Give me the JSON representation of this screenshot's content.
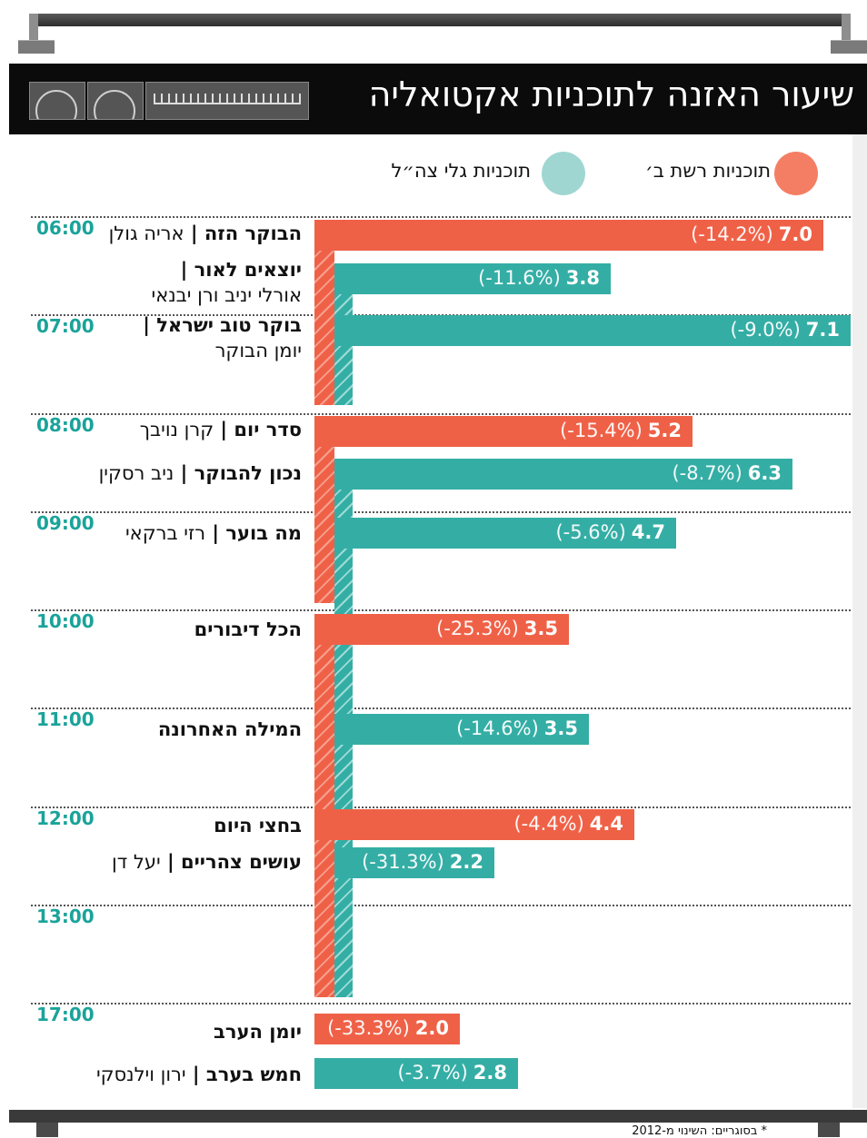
{
  "title": "שיעור האזנה לתוכניות אקטואליה",
  "legend": {
    "reshet_bet": {
      "label": "תוכניות רשת ב׳",
      "color": "#f47e64"
    },
    "galei_tzahal": {
      "label": "תוכניות גלי צה״ל",
      "color": "#9fd6d2"
    }
  },
  "colors": {
    "red": "#ef6147",
    "teal": "#34aea5",
    "hour": "#1aa39a"
  },
  "hours": [
    "06:00",
    "07:00",
    "08:00",
    "09:00",
    "10:00",
    "11:00",
    "12:00",
    "13:00",
    "17:00"
  ],
  "programs": [
    {
      "title": "הבוקר הזה",
      "host": "אריה גולן",
      "host_line2": ""
    },
    {
      "title": "יוצאים לאור",
      "host": "",
      "host_line2": "אורלי יניב ורן יבנאי"
    },
    {
      "title": "בוקר טוב ישראל",
      "host": "",
      "host_line2": "יומן הבוקר"
    },
    {
      "title": "סדר יום",
      "host": "קרן נויבך",
      "host_line2": ""
    },
    {
      "title": "נכון להבוקר",
      "host": "ניב רסקין",
      "host_line2": ""
    },
    {
      "title": "מה בוער",
      "host": "רזי ברקאי",
      "host_line2": ""
    },
    {
      "title": "הכל דיבורים",
      "host": "",
      "host_line2": ""
    },
    {
      "title": "המילה האחרונה",
      "host": "",
      "host_line2": ""
    },
    {
      "title": "בחצי היום",
      "host": "",
      "host_line2": ""
    },
    {
      "title": "עושים צהריים",
      "host": "יעל דן",
      "host_line2": ""
    },
    {
      "title": "יומן הערב",
      "host": "",
      "host_line2": ""
    },
    {
      "title": "חמש בערב",
      "host": "ירון וילנסקי",
      "host_line2": ""
    }
  ],
  "chart_data": {
    "type": "bar",
    "title": "שיעור האזנה לתוכניות אקטואליה",
    "orientation": "horizontal",
    "categories": [
      "הבוקר הזה",
      "יוצאים לאור",
      "בוקר טוב ישראל",
      "סדר יום",
      "נכון להבוקר",
      "מה בוער",
      "הכל דיבורים",
      "המילה האחרונה",
      "בחצי היום",
      "עושים צהריים",
      "יומן הערב",
      "חמש בערב"
    ],
    "station": [
      "reshet_bet",
      "galei_tzahal",
      "galei_tzahal",
      "reshet_bet",
      "galei_tzahal",
      "galei_tzahal",
      "reshet_bet",
      "galei_tzahal",
      "reshet_bet",
      "galei_tzahal",
      "reshet_bet",
      "galei_tzahal"
    ],
    "values": [
      7.0,
      3.8,
      7.1,
      5.2,
      6.3,
      4.7,
      3.5,
      3.5,
      4.4,
      2.2,
      2.0,
      2.8
    ],
    "value_labels": [
      "7.0",
      "3.8",
      "7.1",
      "5.2",
      "6.3",
      "4.7",
      "3.5",
      "3.5",
      "4.4",
      "2.2",
      "2.0",
      "2.8"
    ],
    "change_labels": [
      "(-14.2%)",
      "(-11.6%)",
      "(-9.0%)",
      "(-15.4%)",
      "(-8.7%)",
      "(-5.6%)",
      "(-25.3%)",
      "(-14.6%)",
      "(-4.4%)",
      "(-31.3%)",
      "(-33.3%)",
      "(-3.7%)"
    ],
    "xlim": [
      0,
      7.5
    ]
  },
  "footer": "* בסוגריים: השינוי מ-2012"
}
